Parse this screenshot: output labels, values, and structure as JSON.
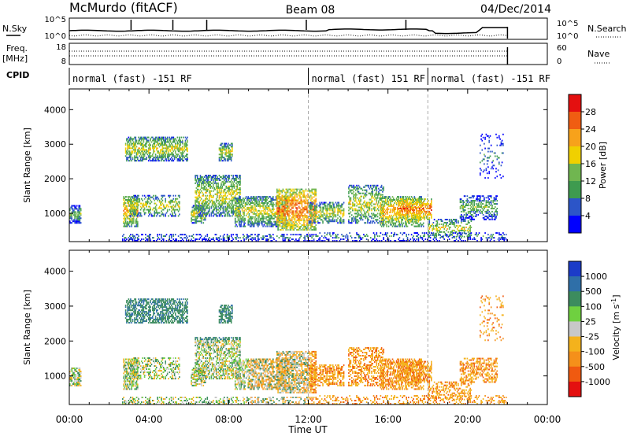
{
  "header": {
    "title": "McMurdo (fitACF)",
    "beam": "Beam 08",
    "date": "04/Dec/2014"
  },
  "noise_panel": {
    "left_label": "N.Sky",
    "right_label": "N.Search",
    "left_ticks": [
      "10^5",
      "10^0"
    ],
    "right_ticks": [
      "10^5",
      "10^0"
    ]
  },
  "freq_panel": {
    "left_label_1": "Freq.",
    "left_label_2": "[MHz]",
    "right_label": "Nave",
    "left_ticks": [
      "18",
      "8"
    ],
    "right_ticks": [
      "60",
      "0"
    ]
  },
  "cpid": {
    "label": "CPID",
    "segments": [
      {
        "text": "normal (fast) -151 RF",
        "start_hour": 0
      },
      {
        "text": "normal (fast) 151 RF",
        "start_hour": 12
      },
      {
        "text": "normal (fast) -151 RF",
        "start_hour": 18
      }
    ]
  },
  "chart_data": [
    {
      "type": "heatmap",
      "title": "",
      "ylabel": "Slant Range [km]",
      "xlabel": "",
      "xlim": [
        0,
        24
      ],
      "ylim": [
        180,
        4600
      ],
      "yticks": [
        "1000",
        "2000",
        "3000",
        "4000"
      ],
      "colorbar": {
        "label": "Power [dB]",
        "ticks": [
          "4",
          "8",
          "12",
          "16",
          "20",
          "24",
          "28"
        ],
        "colors": [
          "#0000ff",
          "#2c55c8",
          "#3e9b4f",
          "#70b650",
          "#f0d000",
          "#f7a21b",
          "#f05d12",
          "#e41010"
        ]
      }
    },
    {
      "type": "heatmap",
      "title": "",
      "ylabel": "Slant Range [km]",
      "xlabel": "Time UT",
      "xlim": [
        0,
        24
      ],
      "ylim": [
        180,
        4600
      ],
      "yticks": [
        "1000",
        "2000",
        "3000",
        "4000"
      ],
      "xticks": [
        "00:00",
        "04:00",
        "08:00",
        "12:00",
        "16:00",
        "20:00",
        "00:00"
      ],
      "colorbar": {
        "label": "Velocity [m s^-1]",
        "ticks": [
          "1000",
          "500",
          "100",
          "25",
          "-25",
          "-100",
          "-500",
          "-1000"
        ],
        "colors": [
          "#1c3cc8",
          "#2f6fa8",
          "#3c8c5e",
          "#6fd040",
          "#c8c8c8",
          "#f4b21c",
          "#f5901a",
          "#f05a10",
          "#e41010"
        ]
      }
    }
  ]
}
